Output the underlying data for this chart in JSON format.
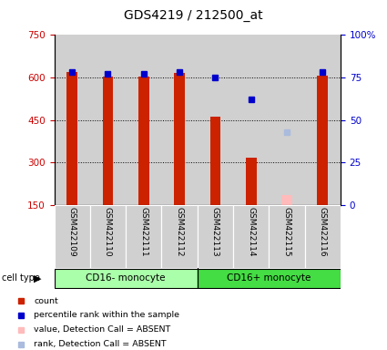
{
  "title": "GDS4219 / 212500_at",
  "samples": [
    "GSM422109",
    "GSM422110",
    "GSM422111",
    "GSM422112",
    "GSM422113",
    "GSM422114",
    "GSM422115",
    "GSM422116"
  ],
  "count_values": [
    620,
    602,
    602,
    615,
    462,
    315,
    null,
    605
  ],
  "count_absent": [
    null,
    null,
    null,
    null,
    null,
    null,
    185,
    null
  ],
  "percentile_values": [
    78,
    77,
    77,
    78,
    75,
    62,
    null,
    78
  ],
  "percentile_absent": [
    null,
    null,
    null,
    null,
    null,
    null,
    43,
    null
  ],
  "cell_types": [
    {
      "label": "CD16- monocyte",
      "start": 0,
      "end": 4,
      "color": "#aaffaa"
    },
    {
      "label": "CD16+ monocyte",
      "start": 4,
      "end": 8,
      "color": "#44dd44"
    }
  ],
  "ylim_left": [
    150,
    750
  ],
  "ylim_right": [
    0,
    100
  ],
  "yticks_left": [
    150,
    300,
    450,
    600,
    750
  ],
  "yticks_right": [
    0,
    25,
    50,
    75,
    100
  ],
  "ytick_labels_right": [
    "0",
    "25",
    "50",
    "75",
    "100%"
  ],
  "bar_color": "#cc2200",
  "bar_absent_color": "#ffbbbb",
  "dot_color": "#0000cc",
  "dot_absent_color": "#aabbdd",
  "bar_width": 0.3,
  "background_sample": "#d0d0d0",
  "legend_items": [
    {
      "label": "count",
      "color": "#cc2200"
    },
    {
      "label": "percentile rank within the sample",
      "color": "#0000cc"
    },
    {
      "label": "value, Detection Call = ABSENT",
      "color": "#ffbbbb"
    },
    {
      "label": "rank, Detection Call = ABSENT",
      "color": "#aabbdd"
    }
  ],
  "ylabel_left_color": "#cc0000",
  "ylabel_right_color": "#0000cc",
  "grid_lines": [
    300,
    450,
    600
  ],
  "hgrid_color": "#888888"
}
